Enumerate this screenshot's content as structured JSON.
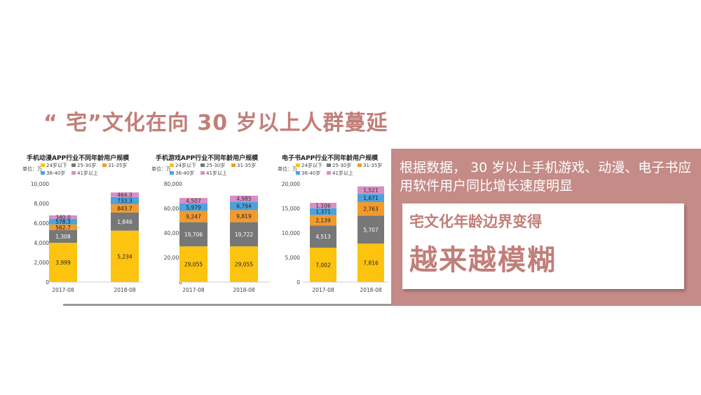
{
  "slide": {
    "title": "“ 宅”文化在向 30 岁以上人群蔓延",
    "description": "根据数据， 30 岁以上手机游戏、动漫、电子书应用软件用户同比增长速度明显",
    "box_line1": "宅文化年龄边界变得",
    "box_line2": "越来越模糊",
    "colors": {
      "accent": "#c48b87",
      "title": "#c27e78"
    }
  },
  "chart_data": [
    {
      "type": "bar",
      "stacked": true,
      "title": "手机动漫APP行业不同年龄用户规模",
      "unit": "单位：万",
      "categories": [
        "2017-08",
        "2018-08"
      ],
      "legend": [
        "24岁以下",
        "25-30岁",
        "31-35岁",
        "36-40岁",
        "41岁以上"
      ],
      "colors": [
        "#fcc30f",
        "#777777",
        "#f29a2e",
        "#4aa3df",
        "#d98ec4"
      ],
      "series": [
        {
          "name": "24岁以下",
          "values": [
            3999,
            5234
          ],
          "labels": [
            "3,999",
            "5,234"
          ]
        },
        {
          "name": "25-30岁",
          "values": [
            1308,
            1846
          ],
          "labels": [
            "1,308",
            "1,846"
          ]
        },
        {
          "name": "31-35岁",
          "values": [
            562.7,
            843.7
          ],
          "labels": [
            "562.7",
            "843.7"
          ]
        },
        {
          "name": "36-40岁",
          "values": [
            578.3,
            733.3
          ],
          "labels": [
            "578.3",
            "733.3"
          ]
        },
        {
          "name": "41岁以上",
          "values": [
            340,
            464.3
          ],
          "labels": [
            "340.0",
            "464.3"
          ]
        }
      ],
      "yticks": [
        "10,000",
        "8,000",
        "6,000",
        "4,000",
        "2,000",
        "0"
      ],
      "ylim": [
        0,
        10000
      ]
    },
    {
      "type": "bar",
      "stacked": true,
      "title": "手机游戏APP行业不同年龄用户规模",
      "unit": "单位：万",
      "categories": [
        "2017-08",
        "2018-08"
      ],
      "legend": [
        "24岁以下",
        "25-30岁",
        "31-35岁",
        "36-40岁",
        "41岁以上"
      ],
      "colors": [
        "#fcc30f",
        "#777777",
        "#f29a2e",
        "#4aa3df",
        "#d98ec4"
      ],
      "series": [
        {
          "name": "24岁以下",
          "values": [
            29055,
            29055
          ],
          "labels": [
            "29,055",
            "29,055"
          ]
        },
        {
          "name": "25-30岁",
          "values": [
            19706,
            19722
          ],
          "labels": [
            "19,706",
            "19,722"
          ]
        },
        {
          "name": "31-35岁",
          "values": [
            9247,
            9819
          ],
          "labels": [
            "9,247",
            "9,819"
          ]
        },
        {
          "name": "36-40岁",
          "values": [
            5979,
            6794
          ],
          "labels": [
            "5,979",
            "6,794"
          ]
        },
        {
          "name": "41岁以上",
          "values": [
            4507,
            4985
          ],
          "labels": [
            "4,507",
            "4,985"
          ]
        }
      ],
      "yticks": [
        "80,000",
        "60,000",
        "40,000",
        "20,000",
        "0"
      ],
      "ylim": [
        0,
        80000
      ]
    },
    {
      "type": "bar",
      "stacked": true,
      "title": "电子书APP行业不同年龄用户规模",
      "unit": "单位：万",
      "categories": [
        "2017-08",
        "2018-08"
      ],
      "legend": [
        "24岁以下",
        "25-30岁",
        "31-35岁",
        "36-40岁",
        "41岁以上"
      ],
      "colors": [
        "#fcc30f",
        "#777777",
        "#f29a2e",
        "#4aa3df",
        "#d98ec4"
      ],
      "series": [
        {
          "name": "24岁以下",
          "values": [
            7002,
            7816
          ],
          "labels": [
            "7,002",
            "7,816"
          ]
        },
        {
          "name": "25-30岁",
          "values": [
            4513,
            5707
          ],
          "labels": [
            "4,513",
            "5,707"
          ]
        },
        {
          "name": "31-35岁",
          "values": [
            2139,
            2763
          ],
          "labels": [
            "2,139",
            "2,763"
          ]
        },
        {
          "name": "36-40岁",
          "values": [
            1371,
            1671
          ],
          "labels": [
            "1,371",
            "1,671"
          ]
        },
        {
          "name": "41岁以上",
          "values": [
            1106,
            1521
          ],
          "labels": [
            "1,106",
            "1,521"
          ]
        }
      ],
      "yticks": [
        "20,000",
        "15,000",
        "10,000",
        "5,000",
        "0"
      ],
      "ylim": [
        0,
        20000
      ]
    }
  ]
}
